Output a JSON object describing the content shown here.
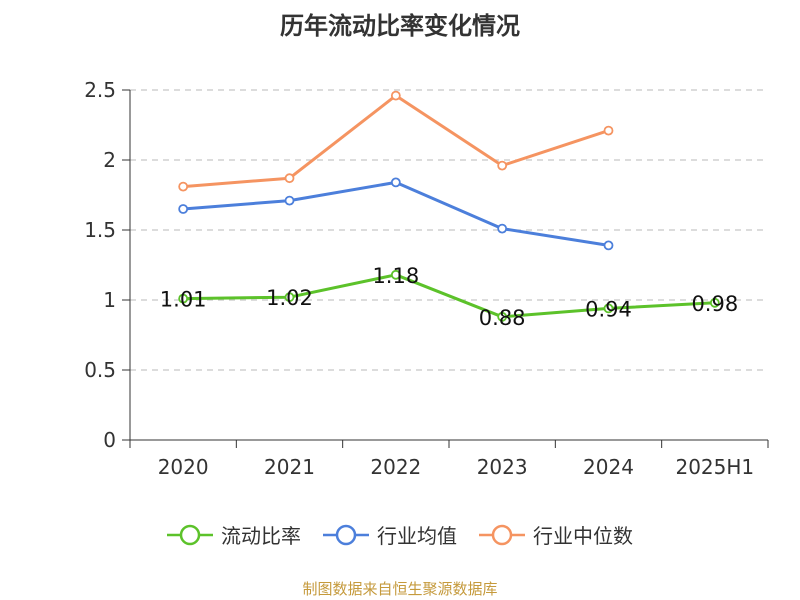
{
  "title": "历年流动比率变化情况",
  "source": "制图数据来自恒生聚源数据库",
  "chart_data": {
    "type": "line",
    "categories": [
      "2020",
      "2021",
      "2022",
      "2023",
      "2024",
      "2025H1"
    ],
    "ylim": [
      0,
      2.5
    ],
    "yticks": [
      "0",
      "0.5",
      "1",
      "1.5",
      "2",
      "2.5"
    ],
    "grid": "horizontal-dashed",
    "legend_position": "bottom",
    "series": [
      {
        "name": "流动比率",
        "color": "#5cc22a",
        "values": [
          1.01,
          1.02,
          1.18,
          0.88,
          0.94,
          0.98
        ],
        "labels": [
          "1.01",
          "1.02",
          "1.18",
          "0.88",
          "0.94",
          "0.98"
        ]
      },
      {
        "name": "行业均值",
        "color": "#4c7fdb",
        "values": [
          1.65,
          1.71,
          1.84,
          1.51,
          1.39,
          null
        ]
      },
      {
        "name": "行业中位数",
        "color": "#f59461",
        "values": [
          1.81,
          1.87,
          2.46,
          1.96,
          2.21,
          null
        ]
      }
    ]
  }
}
